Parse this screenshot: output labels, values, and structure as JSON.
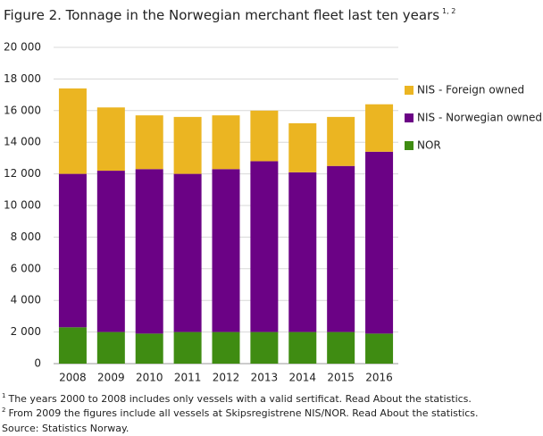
{
  "chart_data": {
    "type": "stacked-bar",
    "title": "Figure 2. Tonnage in the Norwegian merchant fleet last ten years",
    "title_superscript": "1, 2",
    "categories": [
      "2008",
      "2009",
      "2010",
      "2011",
      "2012",
      "2013",
      "2014",
      "2015",
      "2016"
    ],
    "series": [
      {
        "name": "NOR",
        "color": "#3f8c12",
        "values": [
          2300,
          2000,
          1900,
          2000,
          2000,
          2000,
          2000,
          2000,
          1900
        ]
      },
      {
        "name": "NIS - Norwegian owned",
        "color": "#6b0285",
        "values": [
          9700,
          10200,
          10400,
          10000,
          10300,
          10800,
          10100,
          10500,
          11500
        ]
      },
      {
        "name": "NIS - Foreign owned",
        "color": "#ebb522",
        "values": [
          5400,
          4000,
          3400,
          3600,
          3400,
          3200,
          3100,
          3100,
          3000
        ]
      }
    ],
    "ylim": [
      0,
      20000
    ],
    "yticks": [
      0,
      {
        "value": 2000,
        "label": "2 000"
      },
      {
        "value": 4000,
        "label": "4 000"
      },
      {
        "value": 6000,
        "label": "6 000"
      },
      {
        "value": 8000,
        "label": "8 000"
      },
      {
        "value": 10000,
        "label": "10 000"
      },
      {
        "value": 12000,
        "label": "12 000"
      },
      {
        "value": 14000,
        "label": "14 000"
      },
      {
        "value": 16000,
        "label": "16 000"
      },
      {
        "value": 18000,
        "label": "18 000"
      },
      {
        "value": 20000,
        "label": "20 000"
      }
    ],
    "grid": true,
    "legend": "right",
    "footnotes": [
      {
        "marker": "1",
        "text": "The years 2000 to 2008 includes only vessels with a valid sertificat. Read About the statistics."
      },
      {
        "marker": "2",
        "text": "From 2009 the figures include all vessels at Skipsregistrene NIS/NOR.  Read About the statistics."
      }
    ],
    "source": "Source: Statistics Norway."
  }
}
